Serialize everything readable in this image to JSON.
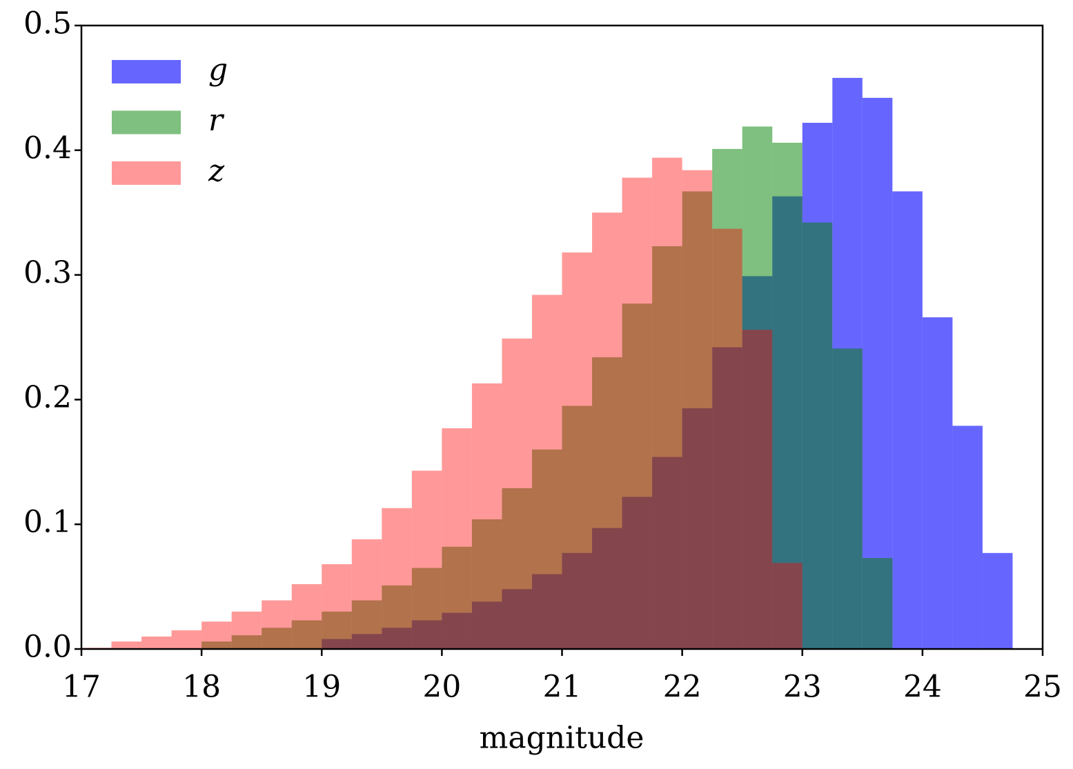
{
  "chart_data": {
    "type": "histogram",
    "xlabel": "magnitude",
    "bins": [
      17,
      17.25,
      17.5,
      17.75,
      18,
      18.25,
      18.5,
      18.75,
      19,
      19.25,
      19.5,
      19.75,
      20,
      20.25,
      20.5,
      20.75,
      21,
      21.25,
      21.5,
      21.75,
      22,
      22.25,
      22.5,
      22.75,
      23,
      23.25,
      23.5,
      23.75,
      24,
      24.25,
      24.5,
      24.75,
      25
    ],
    "series": [
      {
        "name": "g",
        "color": "#0000ff",
        "alpha": 0.6,
        "values": [
          0,
          0,
          0,
          0,
          0,
          0,
          0,
          0,
          0.008,
          0.012,
          0.017,
          0.023,
          0.029,
          0.038,
          0.048,
          0.06,
          0.077,
          0.097,
          0.122,
          0.154,
          0.193,
          0.242,
          0.299,
          0.363,
          0.422,
          0.458,
          0.442,
          0.367,
          0.266,
          0.179,
          0.077,
          0
        ]
      },
      {
        "name": "r",
        "color": "#008000",
        "alpha": 0.5,
        "values": [
          0,
          0,
          0,
          0,
          0.006,
          0.011,
          0.017,
          0.023,
          0.03,
          0.039,
          0.051,
          0.065,
          0.082,
          0.104,
          0.129,
          0.16,
          0.195,
          0.234,
          0.277,
          0.323,
          0.367,
          0.401,
          0.419,
          0.406,
          0.342,
          0.241,
          0.073,
          0,
          0,
          0,
          0,
          0
        ]
      },
      {
        "name": "z",
        "color": "#ff0000",
        "alpha": 0.4,
        "values": [
          0.001,
          0.006,
          0.01,
          0.015,
          0.022,
          0.03,
          0.039,
          0.052,
          0.068,
          0.088,
          0.113,
          0.143,
          0.177,
          0.213,
          0.249,
          0.284,
          0.318,
          0.35,
          0.378,
          0.394,
          0.384,
          0.337,
          0.256,
          0.069,
          0,
          0,
          0,
          0,
          0,
          0,
          0,
          0
        ]
      }
    ],
    "xlim": [
      17,
      25
    ],
    "xticks": [
      17,
      18,
      19,
      20,
      21,
      22,
      23,
      24,
      25
    ],
    "ylim": [
      0,
      0.5
    ],
    "yticks": [
      {
        "value": 0,
        "label": "0.0"
      },
      0.1,
      0.2,
      0.3,
      0.4,
      0.5
    ],
    "legend": "upper left",
    "grid": false
  }
}
